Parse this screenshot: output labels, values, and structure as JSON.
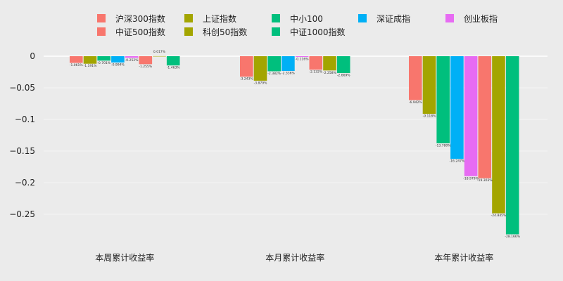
{
  "chart_data": {
    "type": "bar",
    "categories": [
      "本周累计收益率",
      "本月累计收益率",
      "本年累计收益率"
    ],
    "series": [
      {
        "name": "沪深300指数",
        "color": "#f8766d",
        "values": [
          -0.01061,
          -0.03243,
          -0.06942
        ],
        "labels": [
          "-1.061%",
          "-3.243%",
          "-6.942%"
        ]
      },
      {
        "name": "上证指数",
        "color": "#a3a500",
        "values": [
          -0.01191,
          -0.03879,
          -0.09118
        ],
        "labels": [
          "-1.191%",
          "-3.879%",
          "-9.118%"
        ]
      },
      {
        "name": "中小100",
        "color": "#00bf7d",
        "values": [
          -0.00701,
          -0.02382,
          -0.1378
        ],
        "labels": [
          "-0.701%",
          "-2.382%",
          "-13.780%"
        ]
      },
      {
        "name": "深证成指",
        "color": "#00b0f6",
        "values": [
          -0.00994,
          -0.02336,
          -0.16247
        ],
        "labels": [
          "-0.994%",
          "-2.336%",
          "-16.247%"
        ]
      },
      {
        "name": "创业板指",
        "color": "#e76bf3",
        "values": [
          -0.00252,
          -0.00116,
          -0.18979
        ],
        "labels": [
          "-0.252%",
          "-0.116%",
          "-18.979%"
        ]
      },
      {
        "name": "中证500指数",
        "color": "#f8766d",
        "values": [
          -0.01255,
          -0.02132,
          -0.19303
        ],
        "labels": [
          "-1.255%",
          "-2.132%",
          "-19.303%"
        ]
      },
      {
        "name": "科创50指数",
        "color": "#a3a500",
        "values": [
          0.00017,
          -0.02258,
          -0.24845
        ],
        "labels": [
          "0.017%",
          "-2.258%",
          "-24.845%"
        ]
      },
      {
        "name": "中证1000指数",
        "color": "#00bf7d",
        "values": [
          -0.01463,
          -0.02669,
          -0.28166
        ],
        "labels": [
          "-1.463%",
          "-2.669%",
          "-28.166%"
        ]
      }
    ],
    "yticks": [
      0,
      -0.05,
      -0.1,
      -0.15,
      -0.2,
      -0.25
    ],
    "ytick_labels": [
      "0",
      "−0.05",
      "−0.1",
      "−0.15",
      "−0.2",
      "−0.25"
    ],
    "ylim": [
      -0.3,
      0.01
    ],
    "legend_position": "top",
    "grid": true
  }
}
